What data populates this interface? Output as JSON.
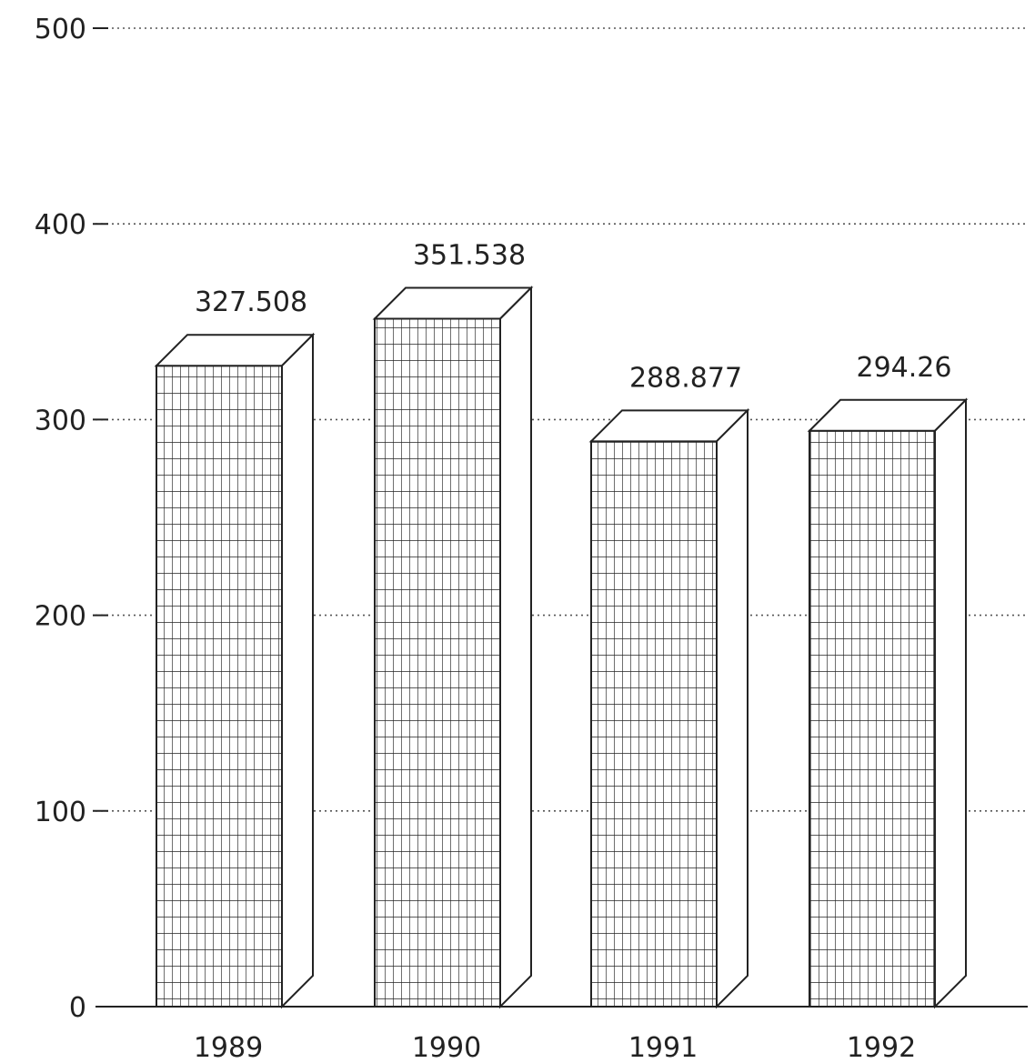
{
  "chart_data": {
    "type": "bar",
    "categories": [
      "1989",
      "1990",
      "1991",
      "1992"
    ],
    "values": [
      327.508,
      351.538,
      288.877,
      294.26
    ],
    "value_labels": [
      "327.508",
      "351.538",
      "288.877",
      "294.26"
    ],
    "y_ticks": [
      "0",
      "100",
      "200",
      "300",
      "400",
      "500"
    ],
    "ylim": [
      0,
      500
    ],
    "title": "",
    "xlabel": "",
    "ylabel": "",
    "grid": true,
    "grid_style": "dotted",
    "bar_style": "3d-grid-pattern",
    "colors": {
      "line": "#222222",
      "grid": "#555555",
      "background": "#ffffff"
    }
  }
}
